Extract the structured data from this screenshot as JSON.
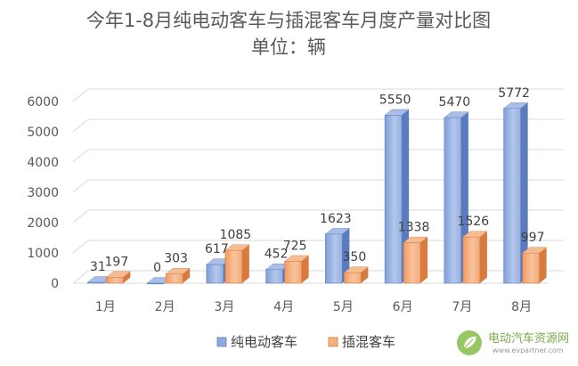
{
  "chart_data": {
    "type": "bar",
    "title": "今年1-8月纯电动客车与插混客车月度产量对比图",
    "subtitle": "单位：辆",
    "categories": [
      "1月",
      "2月",
      "3月",
      "4月",
      "5月",
      "6月",
      "7月",
      "8月"
    ],
    "yticks": [
      "0",
      "1000",
      "2000",
      "3000",
      "4000",
      "5000",
      "6000"
    ],
    "ylim": [
      0,
      6000
    ],
    "legend_position": "bottom",
    "grid": true,
    "series": [
      {
        "name": "纯电动客车",
        "values": [
          31,
          0,
          617,
          452,
          1623,
          5550,
          5470,
          5772
        ],
        "labels": [
          "31",
          "0",
          "617",
          "452",
          "1623",
          "5550",
          "5470",
          "5772"
        ],
        "color": "#8faadc"
      },
      {
        "name": "插混客车",
        "values": [
          197,
          303,
          1085,
          725,
          350,
          1338,
          1526,
          997
        ],
        "labels": [
          "197",
          "303",
          "1085",
          "725",
          "350",
          "1338",
          "1526",
          "997"
        ],
        "color": "#f4b183"
      }
    ]
  },
  "watermark": {
    "name": "电动汽车资源网",
    "url": "www.evpartner.com",
    "icon": "leaf-logo-icon"
  }
}
